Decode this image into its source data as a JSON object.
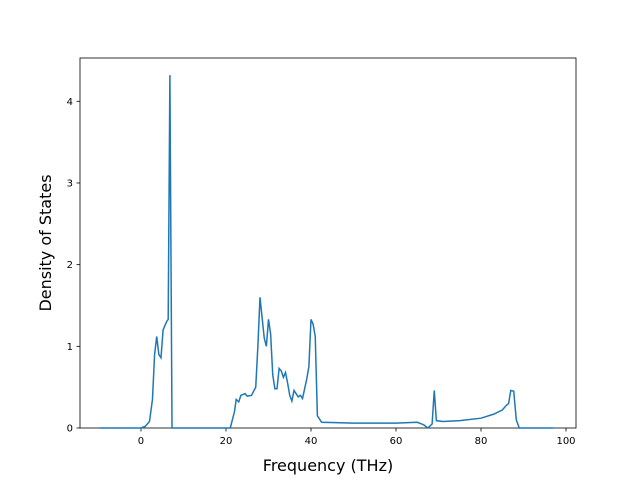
{
  "chart_data": {
    "type": "line",
    "xlabel": "Frequency (THz)",
    "ylabel": "Density of States",
    "xlim": [
      -14.35,
      102.35
    ],
    "ylim": [
      0,
      4.53
    ],
    "xticks": [
      0,
      20,
      40,
      60,
      80,
      100
    ],
    "yticks": [
      0,
      1,
      2,
      3,
      4
    ],
    "series": [
      {
        "color": "#1f77b4",
        "x": [
          -9.6,
          0,
          1,
          2,
          2.7,
          3.2,
          3.7,
          4.2,
          4.7,
          5.2,
          6,
          6.4,
          6.8,
          7.3,
          10,
          20,
          21,
          22,
          22.4,
          23,
          23.5,
          24.5,
          25,
          26,
          27,
          27.5,
          28,
          28.5,
          29,
          29.5,
          30,
          30.5,
          31,
          31.5,
          32,
          32.5,
          33,
          33.5,
          34,
          34.5,
          35,
          35.5,
          36,
          36.5,
          37,
          37.5,
          38,
          39,
          39.5,
          40,
          40.5,
          41,
          41.5,
          42.5,
          50,
          60,
          65,
          66.5,
          67.5,
          68.5,
          69,
          69.5,
          71,
          75,
          80,
          83,
          85,
          86,
          86.5,
          87,
          87.7,
          88.3,
          89,
          97
        ],
        "values": [
          0,
          0,
          0.02,
          0.08,
          0.35,
          0.9,
          1.12,
          0.9,
          0.86,
          1.2,
          1.3,
          1.33,
          4.32,
          0,
          0,
          0,
          0,
          0.2,
          0.35,
          0.32,
          0.4,
          0.42,
          0.39,
          0.4,
          0.5,
          1.0,
          1.6,
          1.35,
          1.1,
          1.0,
          1.33,
          1.15,
          0.65,
          0.48,
          0.48,
          0.73,
          0.7,
          0.62,
          0.68,
          0.55,
          0.4,
          0.33,
          0.46,
          0.42,
          0.38,
          0.4,
          0.36,
          0.6,
          0.75,
          1.33,
          1.27,
          1.12,
          0.15,
          0.07,
          0.06,
          0.06,
          0.07,
          0.04,
          0,
          0.05,
          0.46,
          0.09,
          0.08,
          0.09,
          0.12,
          0.17,
          0.22,
          0.28,
          0.3,
          0.46,
          0.45,
          0.1,
          0,
          0
        ]
      }
    ]
  }
}
